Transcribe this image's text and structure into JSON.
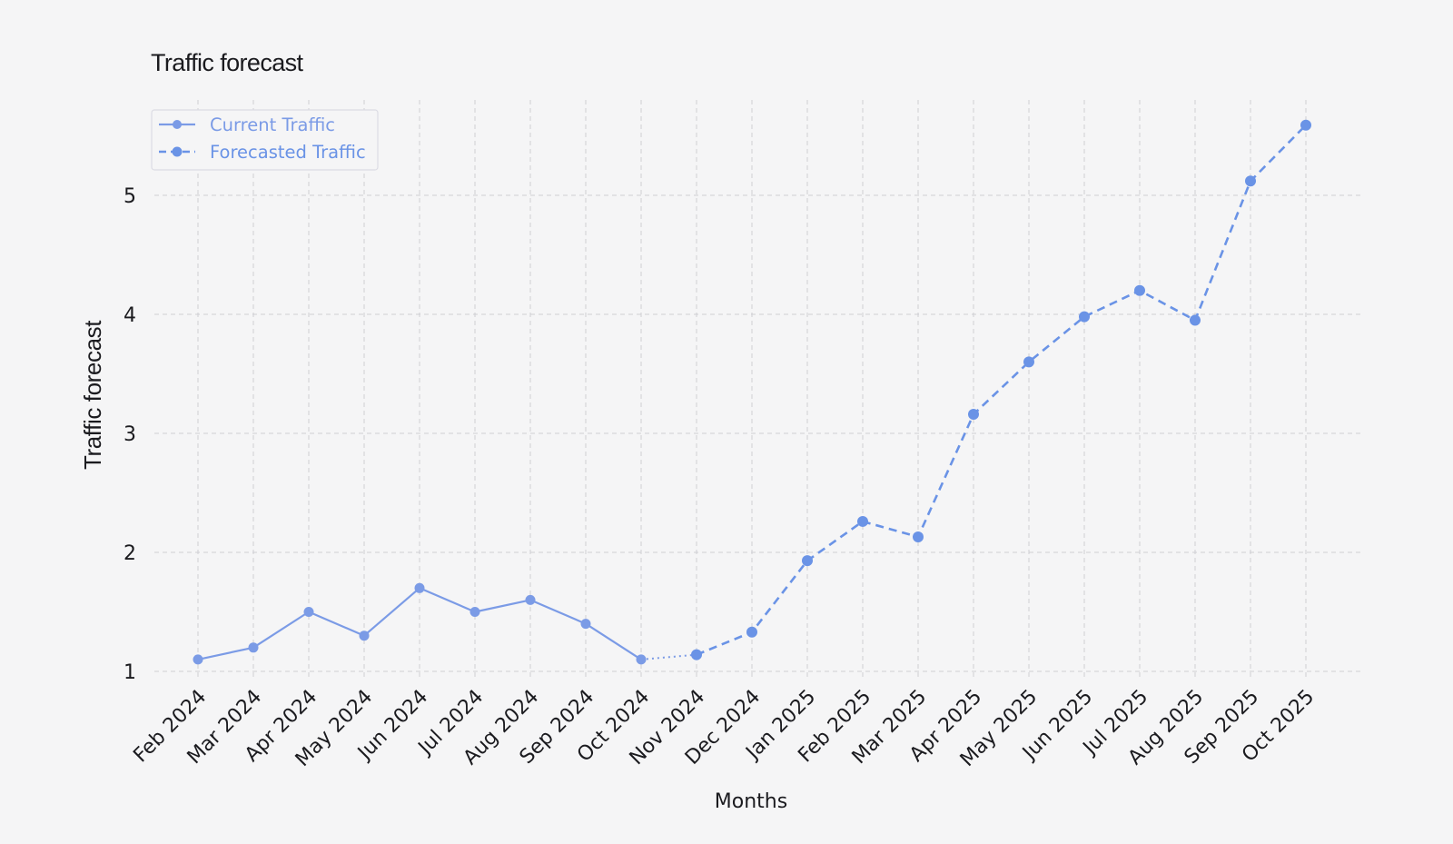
{
  "chart_data": {
    "type": "line",
    "title": "Traffic forecast",
    "xlabel": "Months",
    "ylabel": "Traffic forecast",
    "categories": [
      "Feb 2024",
      "Mar 2024",
      "Apr 2024",
      "May 2024",
      "Jun 2024",
      "Jul 2024",
      "Aug 2024",
      "Sep 2024",
      "Oct 2024",
      "Nov 2024",
      "Dec 2024",
      "Jan 2025",
      "Feb 2025",
      "Mar 2025",
      "Apr 2025",
      "May 2025",
      "Jun 2025",
      "Jul 2025",
      "Aug 2025",
      "Sep 2025",
      "Oct 2025"
    ],
    "yticks": [
      1,
      2,
      3,
      4,
      5
    ],
    "ylim": [
      0.92,
      5.8
    ],
    "grid": true,
    "legend_position": "top-left",
    "series": [
      {
        "name": "Current Traffic",
        "style": "solid",
        "color": "#7b9be6",
        "points": [
          {
            "x": "Feb 2024",
            "y": 1.1
          },
          {
            "x": "Mar 2024",
            "y": 1.2
          },
          {
            "x": "Apr 2024",
            "y": 1.5
          },
          {
            "x": "May 2024",
            "y": 1.3
          },
          {
            "x": "Jun 2024",
            "y": 1.7
          },
          {
            "x": "Jul 2024",
            "y": 1.5
          },
          {
            "x": "Aug 2024",
            "y": 1.6
          },
          {
            "x": "Sep 2024",
            "y": 1.4
          },
          {
            "x": "Oct 2024",
            "y": 1.1
          }
        ]
      },
      {
        "name": "Forecasted Traffic",
        "style": "dashed",
        "color": "#6a93e6",
        "points": [
          {
            "x": "Nov 2024",
            "y": 1.14
          },
          {
            "x": "Dec 2024",
            "y": 1.33
          },
          {
            "x": "Jan 2025",
            "y": 1.93
          },
          {
            "x": "Feb 2025",
            "y": 2.26
          },
          {
            "x": "Mar 2025",
            "y": 2.13
          },
          {
            "x": "Apr 2025",
            "y": 3.16
          },
          {
            "x": "May 2025",
            "y": 3.6
          },
          {
            "x": "Jun 2025",
            "y": 3.98
          },
          {
            "x": "Jul 2025",
            "y": 4.2
          },
          {
            "x": "Aug 2025",
            "y": 3.95
          },
          {
            "x": "Sep 2025",
            "y": 5.12
          },
          {
            "x": "Oct 2025",
            "y": 5.59
          }
        ]
      }
    ],
    "connector": {
      "from": "Oct 2024",
      "to": "Nov 2024",
      "style": "dotted"
    }
  }
}
